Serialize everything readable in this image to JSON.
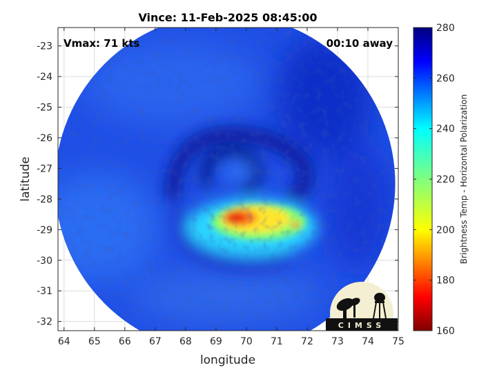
{
  "chart_data": {
    "type": "heatmap",
    "title": "Vince: 11-Feb-2025 08:45:00",
    "xlabel": "longitude",
    "ylabel": "latitude",
    "xlim": [
      63.8,
      75.0
    ],
    "ylim": [
      -32.3,
      -22.4
    ],
    "x_ticks": [
      "64",
      "65",
      "66",
      "67",
      "68",
      "69",
      "70",
      "71",
      "72",
      "73",
      "74",
      "75"
    ],
    "y_ticks": [
      "-23",
      "-24",
      "-25",
      "-26",
      "-27",
      "-28",
      "-29",
      "-30",
      "-31",
      "-32"
    ],
    "grid": true,
    "annotations": {
      "vmax": "Vmax: 71 kts",
      "away": "00:10 away"
    },
    "colorbar": {
      "label": "Brightness Temp - Horizontal Polarization",
      "range": [
        160,
        280
      ],
      "ticks": [
        "160",
        "180",
        "200",
        "220",
        "240",
        "260",
        "280"
      ],
      "colormap": "jet"
    },
    "swath": {
      "shape": "circle",
      "center_lon": 69.3,
      "center_lat": -27.5,
      "radius_deg": 5.6
    },
    "storm_center": {
      "lon": 69.9,
      "lat": -27.2
    },
    "features": [
      {
        "name": "eye-region",
        "lon": 70.4,
        "lat": -27.2,
        "temp": 262
      },
      {
        "name": "warm-core",
        "lon": 69.8,
        "lat": -28.7,
        "temp": 190
      },
      {
        "name": "convective-band",
        "lon": 70.5,
        "lat": -28.8,
        "temp": 218
      }
    ]
  },
  "logo": {
    "text": "CIMSS"
  }
}
